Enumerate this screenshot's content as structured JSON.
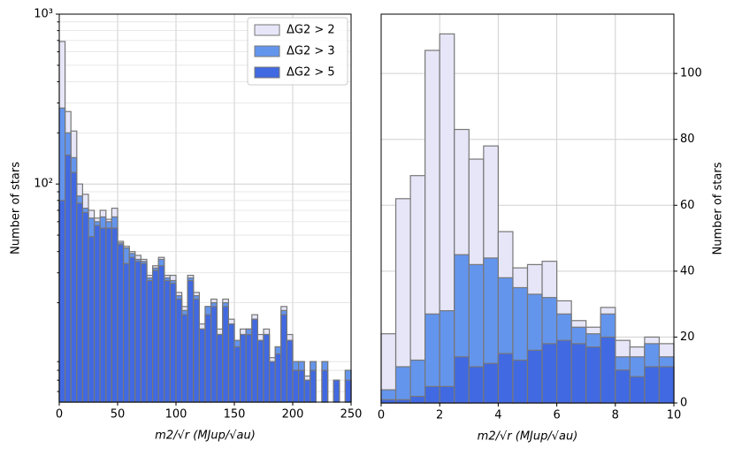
{
  "chart_data": [
    {
      "type": "histogram",
      "xlabel": "m2/√r (MJup/√au)",
      "ylabel": "Number of stars",
      "bins": [
        0,
        5,
        10,
        15,
        20,
        25,
        30,
        35,
        40,
        45,
        50,
        55,
        60,
        65,
        70,
        75,
        80,
        85,
        90,
        95,
        100,
        105,
        110,
        115,
        120,
        125,
        130,
        135,
        140,
        145,
        150,
        155,
        160,
        165,
        170,
        175,
        180,
        185,
        190,
        195,
        200,
        205,
        210,
        215,
        220,
        225,
        230,
        235,
        240,
        245,
        250
      ],
      "series": [
        {
          "name": "ΔG2 > 2",
          "color": "#e6e6f8",
          "values": [
            690,
            267,
            205,
            100,
            87,
            70,
            63,
            70,
            62,
            72,
            46,
            43,
            40,
            38,
            36,
            29,
            33,
            37,
            29,
            29,
            23,
            19,
            29,
            23,
            15,
            19,
            21,
            14,
            21,
            16,
            12,
            14,
            14,
            17,
            13,
            14,
            9.5,
            11,
            19,
            13,
            9,
            9,
            7.4,
            9,
            0,
            9,
            0,
            7,
            0,
            8
          ]
        },
        {
          "name": "ΔG2 > 3",
          "color": "#6495ed",
          "values": [
            280,
            200,
            143,
            85,
            72,
            63,
            60,
            64,
            60,
            64,
            45,
            42,
            39,
            36,
            35,
            28,
            32,
            36,
            28,
            27,
            22,
            18,
            28,
            22,
            14,
            19,
            20,
            13,
            20,
            15,
            12,
            13,
            14,
            16,
            12,
            13,
            9,
            11,
            18,
            12,
            9,
            9,
            7,
            9,
            0,
            9,
            0,
            7,
            0,
            8
          ]
        },
        {
          "name": "ΔG2 > 5",
          "color": "#4169e1",
          "values": [
            80,
            148,
            117,
            77,
            68,
            49,
            57,
            55,
            55,
            55,
            44,
            34,
            37,
            35,
            34,
            27,
            31,
            33,
            27,
            26,
            21,
            17,
            27,
            21,
            14,
            17,
            19,
            13,
            19,
            15,
            11,
            13,
            13,
            16,
            12,
            13,
            9,
            10,
            17,
            12,
            8,
            8,
            7,
            8,
            0,
            8,
            0,
            7,
            0,
            7
          ]
        }
      ],
      "edge_color": "#777777",
      "xlim": [
        0,
        250
      ],
      "xticks": [
        0,
        50,
        100,
        150,
        200,
        250
      ],
      "ylim": [
        5.2,
        1000
      ],
      "log_y": true,
      "yticks": [
        {
          "value": 100,
          "label": "10²"
        },
        {
          "value": 1000,
          "label": "10³"
        }
      ],
      "yminorticks": [
        6,
        7,
        8,
        9,
        20,
        30,
        40,
        50,
        60,
        70,
        80,
        90,
        200,
        300,
        400,
        500,
        600,
        700,
        800,
        900
      ],
      "grid": true,
      "legend": "upper right",
      "yaxis_side": "left"
    },
    {
      "type": "histogram",
      "xlabel": "m2/√r (MJup/√au)",
      "ylabel": "Number of stars",
      "bins": [
        0,
        0.5,
        1,
        1.5,
        2,
        2.5,
        3,
        3.5,
        4,
        4.5,
        5,
        5.5,
        6,
        6.5,
        7,
        7.5,
        8,
        8.5,
        9,
        9.5,
        10
      ],
      "series": [
        {
          "name": "ΔG2 > 2",
          "color": "#e6e6f8",
          "values": [
            21,
            62,
            69,
            107,
            112,
            83,
            74,
            78,
            52,
            41,
            42,
            43,
            31,
            25,
            23,
            29,
            19,
            17,
            20,
            18
          ]
        },
        {
          "name": "ΔG2 > 3",
          "color": "#6495ed",
          "values": [
            4,
            11,
            13,
            27,
            28,
            45,
            42,
            44,
            38,
            35,
            33,
            32,
            27,
            23,
            21,
            27,
            14,
            14,
            18,
            14
          ]
        },
        {
          "name": "ΔG2 > 5",
          "color": "#4169e1",
          "values": [
            1,
            1,
            2,
            5,
            5,
            14,
            11,
            12,
            15,
            13,
            16,
            18,
            19,
            18,
            17,
            20,
            10,
            8,
            11,
            11
          ]
        }
      ],
      "edge_color": "#777777",
      "xlim": [
        0,
        10
      ],
      "xticks": [
        0,
        2,
        4,
        6,
        8,
        10
      ],
      "ylim": [
        0,
        118
      ],
      "yticks": [
        0,
        20,
        40,
        60,
        80,
        100
      ],
      "grid": true,
      "yaxis_side": "right"
    }
  ]
}
